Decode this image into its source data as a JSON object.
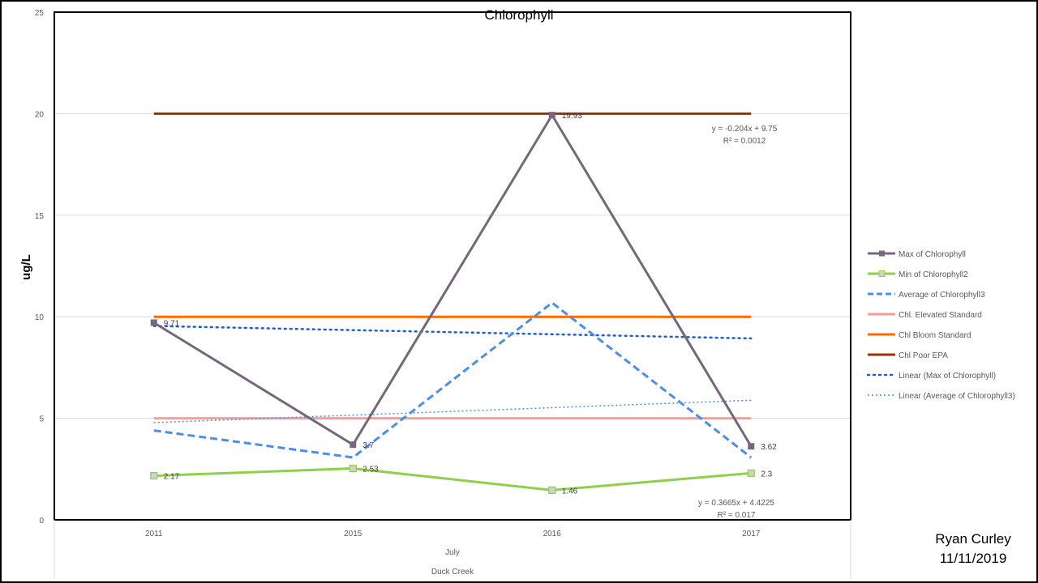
{
  "chart_data": {
    "type": "line",
    "title": "Chlorophyll",
    "ylabel": "ug/L",
    "xlabel_levels": [
      "July",
      "Duck Creek"
    ],
    "categories": [
      "2011",
      "2015",
      "2016",
      "2017"
    ],
    "ylim": [
      0,
      25
    ],
    "yticks": [
      "0",
      "5",
      "10",
      "15",
      "20",
      "25"
    ],
    "grid": true,
    "legend_position": "right",
    "series": [
      {
        "name": "Max of Chlorophyll",
        "values": [
          9.71,
          3.7,
          19.93,
          3.62
        ],
        "labels": [
          "9.71",
          "3.7",
          "19.93",
          "3.62"
        ],
        "color": "#76677a",
        "style": "solid-square"
      },
      {
        "name": "Min of Chlorophyll2",
        "values": [
          2.17,
          2.53,
          1.46,
          2.3
        ],
        "labels": [
          "2.17",
          "2.53",
          "1.46",
          "2.3"
        ],
        "color": "#8fcf4a",
        "style": "solid-square-hollow"
      },
      {
        "name": "Average of Chlorophyll3",
        "values": [
          4.4,
          3.07,
          10.69,
          3.07
        ],
        "color": "#4a8fe8",
        "style": "dashed"
      },
      {
        "name": "Chl. Elevated Standard",
        "values": [
          5,
          5,
          5,
          5
        ],
        "color": "#ff9a9a",
        "style": "solid"
      },
      {
        "name": "Chl Bloom Standard",
        "values": [
          10,
          10,
          10,
          10
        ],
        "color": "#ff6a00",
        "style": "solid"
      },
      {
        "name": "Chl Poor EPA",
        "values": [
          20,
          20,
          20,
          20
        ],
        "color": "#993300",
        "style": "solid"
      },
      {
        "name": "Linear (Max of Chlorophyll)",
        "values": [
          9.546,
          9.342,
          9.138,
          8.934
        ],
        "color": "#1f5fcc",
        "style": "dotted"
      },
      {
        "name": "Linear (Average of Chlorophyll3)",
        "values": [
          4.789,
          5.156,
          5.522,
          5.889
        ],
        "color": "#4a8fe8",
        "style": "dotted-thin"
      }
    ],
    "trendline_labels": [
      {
        "equation": "y = -0.204x + 9.75",
        "r2": "R² = 0.0012"
      },
      {
        "equation": "y = 0.3665x + 4.4225",
        "r2": "R² = 0.017"
      }
    ]
  },
  "author": {
    "name": "Ryan Curley",
    "date": "11/11/2019"
  }
}
